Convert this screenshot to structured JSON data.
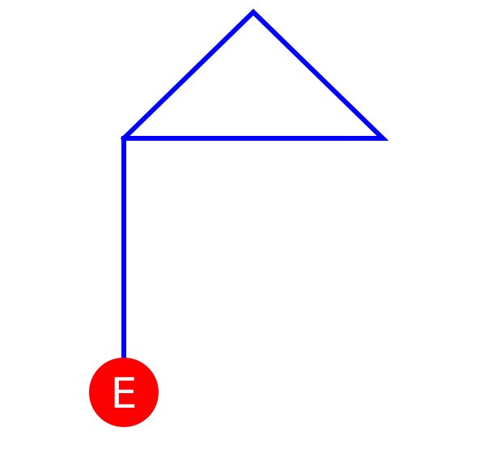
{
  "diagram": {
    "path_color": "#0000ff",
    "end_marker": {
      "label": "E",
      "fill_color": "#ff0000",
      "text_color": "#ffffff"
    }
  }
}
